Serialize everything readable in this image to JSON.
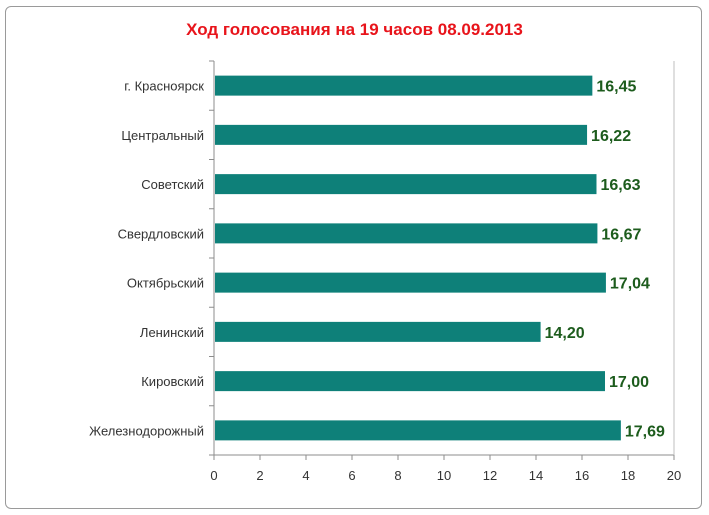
{
  "chart_data": {
    "type": "bar",
    "orientation": "horizontal",
    "title": "Ход голосования на 19 часов 08.09.2013",
    "categories": [
      "г. Красноярск",
      "Центральный",
      "Советский",
      "Свердловский",
      "Октябрьский",
      "Ленинский",
      "Кировский",
      "Железнодорожный"
    ],
    "values": [
      16.45,
      16.22,
      16.63,
      16.67,
      17.04,
      14.2,
      17.0,
      17.69
    ],
    "value_labels": [
      "16,45",
      "16,22",
      "16,63",
      "16,67",
      "17,04",
      "14,20",
      "17,00",
      "17,69"
    ],
    "xlim": [
      0,
      20
    ],
    "x_ticks": [
      0,
      2,
      4,
      6,
      8,
      10,
      12,
      14,
      16,
      18,
      20
    ],
    "grid": false,
    "colors": {
      "bar": "#0e8079",
      "title": "#e8141b",
      "value_label": "#1d5c1d",
      "axis": "#8c8c8c"
    }
  }
}
